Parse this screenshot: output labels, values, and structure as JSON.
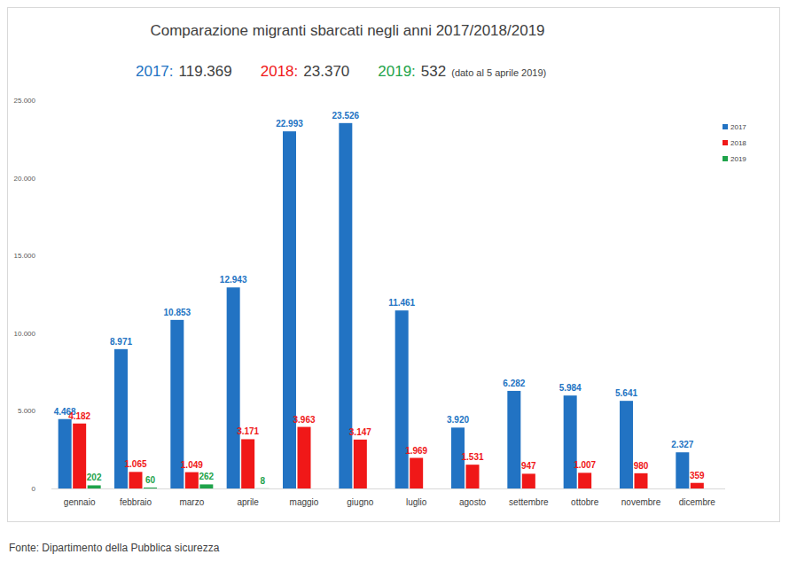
{
  "chart_data": {
    "type": "bar",
    "title": "Comparazione migranti sbarcati negli anni 2017/2018/2019",
    "annotations": [
      {
        "label": "2017:",
        "text": "119.369",
        "color": "#2273c3"
      },
      {
        "label": "2018:",
        "text": "23.370",
        "color": "#f01818"
      },
      {
        "label": "2019:",
        "text": "532",
        "note": "(dato al 5 aprile 2019)",
        "color": "#1ea34a"
      }
    ],
    "footnote": "Fonte: Dipartimento della Pubblica sicurezza",
    "categories": [
      "gennaio",
      "febbraio",
      "marzo",
      "aprile",
      "maggio",
      "giugno",
      "luglio",
      "agosto",
      "settembre",
      "ottobre",
      "novembre",
      "dicembre"
    ],
    "series": [
      {
        "name": "2017",
        "color": "#2273c3",
        "values": [
          4468,
          8971,
          10853,
          12943,
          22993,
          23526,
          11461,
          3920,
          6282,
          5984,
          5641,
          2327
        ],
        "value_labels": [
          "4.468",
          "8.971",
          "10.853",
          "12.943",
          "22.993",
          "23.526",
          "11.461",
          "3.920",
          "6.282",
          "5.984",
          "5.641",
          "2.327"
        ]
      },
      {
        "name": "2018",
        "color": "#f01818",
        "values": [
          4182,
          1065,
          1049,
          3171,
          3963,
          3147,
          1969,
          1531,
          947,
          1007,
          980,
          359
        ],
        "value_labels": [
          "4.182",
          "1.065",
          "1.049",
          "3.171",
          "3.963",
          "3.147",
          "1.969",
          "1.531",
          "947",
          "1.007",
          "980",
          "359"
        ]
      },
      {
        "name": "2019",
        "color": "#1ea34a",
        "values": [
          202,
          60,
          262,
          8,
          null,
          null,
          null,
          null,
          null,
          null,
          null,
          null
        ],
        "value_labels": [
          "202",
          "60",
          "262",
          "8",
          null,
          null,
          null,
          null,
          null,
          null,
          null,
          null
        ]
      }
    ],
    "ylim": [
      0,
      25000
    ],
    "yticks": [
      0,
      {
        "value": 5000,
        "label": "5.000"
      },
      {
        "value": 10000,
        "label": "10.000"
      },
      {
        "value": 15000,
        "label": "15.000"
      },
      {
        "value": 20000,
        "label": "20.000"
      },
      {
        "value": 25000,
        "label": "25.000"
      }
    ],
    "grid": false,
    "legend": "right",
    "data_labels": true
  }
}
